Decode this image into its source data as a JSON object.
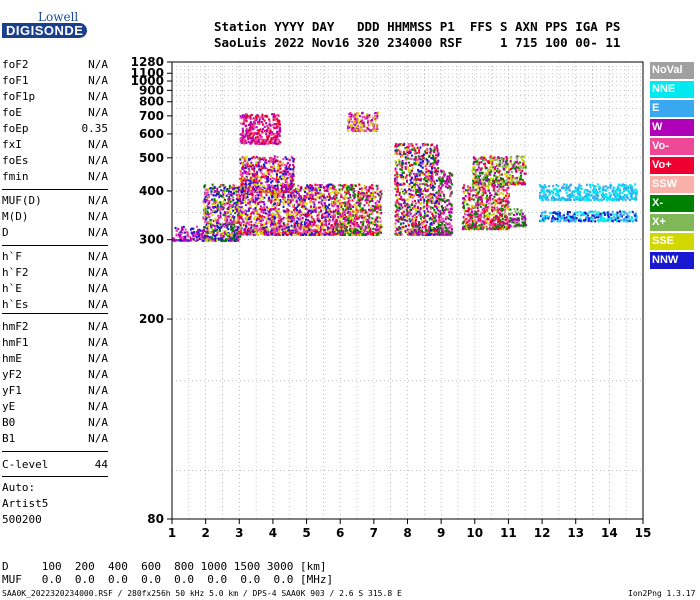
{
  "logo": {
    "line1": "Lowell",
    "line2": "DIGISONDE"
  },
  "header": {
    "row1": "Station YYYY DAY   DDD HHMMSS P1  FFS S AXN PPS IGA PS",
    "row2": "SaoLuis 2022 Nov16 320 234000 RSF     1 715 100 00- 11"
  },
  "params_group1": [
    {
      "name": "foF2",
      "value": "N/A"
    },
    {
      "name": "foF1",
      "value": "N/A"
    },
    {
      "name": "foF1p",
      "value": "N/A"
    },
    {
      "name": "foE",
      "value": "N/A"
    },
    {
      "name": "foEp",
      "value": "0.35"
    },
    {
      "name": "fxI",
      "value": "N/A"
    },
    {
      "name": "foEs",
      "value": "N/A"
    },
    {
      "name": "fmin",
      "value": "N/A"
    }
  ],
  "params_group2": [
    {
      "name": "MUF(D)",
      "value": "N/A"
    },
    {
      "name": "M(D)",
      "value": "N/A"
    },
    {
      "name": "D",
      "value": "N/A"
    }
  ],
  "params_group3": [
    {
      "name": "h`F",
      "value": "N/A"
    },
    {
      "name": "h`F2",
      "value": "N/A"
    },
    {
      "name": "h`E",
      "value": "N/A"
    },
    {
      "name": "h`Es",
      "value": "N/A"
    }
  ],
  "params_group4": [
    {
      "name": "hmF2",
      "value": "N/A"
    },
    {
      "name": "hmF1",
      "value": "N/A"
    },
    {
      "name": "hmE",
      "value": "N/A"
    },
    {
      "name": "yF2",
      "value": "N/A"
    },
    {
      "name": "yF1",
      "value": "N/A"
    },
    {
      "name": "yE",
      "value": "N/A"
    },
    {
      "name": "B0",
      "value": "N/A"
    },
    {
      "name": "B1",
      "value": "N/A"
    }
  ],
  "c_level": {
    "name": "C-level",
    "value": "44"
  },
  "auto": [
    "Auto:",
    "Artist5",
    "500200"
  ],
  "muf_table": {
    "d_row": "D     100  200  400  600  800 1000 1500 3000 [km]",
    "muf_row": "MUF   0.0  0.0  0.0  0.0  0.0  0.0  0.0  0.0 [MHz]"
  },
  "footer": {
    "left": "SAA0K_2022320234000.RSF / 280fx256h 50 kHz 5.0 km / DPS-4 SAA0K 903 / 2.6 S 315.8 E",
    "right": "Ion2Png 1.3.17"
  },
  "chart_data": {
    "type": "scatter",
    "title": "",
    "xlabel": "",
    "ylabel": "",
    "xlim": [
      1,
      15
    ],
    "ylim": [
      80,
      1280
    ],
    "x_ticks": [
      1,
      2,
      3,
      4,
      5,
      6,
      7,
      8,
      9,
      10,
      11,
      12,
      13,
      14,
      15
    ],
    "y_ticks": [
      80,
      200,
      300,
      400,
      500,
      600,
      700,
      800,
      900,
      1000,
      1100,
      1280
    ],
    "y_scale": "reciprocal",
    "grid": true,
    "legend_placement": "right",
    "series": [
      {
        "name": "NoVal",
        "color": "#a0a0a0"
      },
      {
        "name": "NNE",
        "color": "#00e8f0"
      },
      {
        "name": "E",
        "color": "#3aa8f0"
      },
      {
        "name": "W",
        "color": "#b000b8"
      },
      {
        "name": "Vo-",
        "color": "#f04898"
      },
      {
        "name": "Vo+",
        "color": "#f00030"
      },
      {
        "name": "SSW",
        "color": "#f8b0a8"
      },
      {
        "name": "X-",
        "color": "#008000"
      },
      {
        "name": "X+",
        "color": "#80b858"
      },
      {
        "name": "SSE",
        "color": "#d0d800"
      },
      {
        "name": "NNW",
        "color": "#1818d0"
      }
    ],
    "echo_clusters": [
      {
        "x": [
          1.0,
          1.9
        ],
        "y": [
          300,
          325
        ],
        "colors": [
          10,
          4,
          3
        ]
      },
      {
        "x": [
          1.9,
          3.0
        ],
        "y": [
          300,
          420
        ],
        "colors": [
          10,
          4,
          3,
          7,
          9
        ]
      },
      {
        "x": [
          2.9,
          4.5
        ],
        "y": [
          310,
          400
        ],
        "colors": [
          4,
          3,
          5,
          10,
          9
        ]
      },
      {
        "x": [
          3.0,
          4.6
        ],
        "y": [
          400,
          510
        ],
        "colors": [
          3,
          4,
          9,
          10,
          5
        ]
      },
      {
        "x": [
          3.0,
          4.2
        ],
        "y": [
          560,
          720
        ],
        "colors": [
          3,
          4,
          5
        ]
      },
      {
        "x": [
          4.5,
          5.8
        ],
        "y": [
          310,
          420
        ],
        "colors": [
          4,
          3,
          5,
          10,
          9
        ]
      },
      {
        "x": [
          5.8,
          7.2
        ],
        "y": [
          310,
          420
        ],
        "colors": [
          4,
          3,
          5,
          9,
          7
        ]
      },
      {
        "x": [
          6.2,
          7.1
        ],
        "y": [
          620,
          730
        ],
        "colors": [
          3,
          4,
          9
        ]
      },
      {
        "x": [
          7.6,
          8.9
        ],
        "y": [
          310,
          560
        ],
        "colors": [
          4,
          5,
          3,
          9,
          7,
          10
        ]
      },
      {
        "x": [
          8.9,
          9.3
        ],
        "y": [
          310,
          460
        ],
        "colors": [
          4,
          3,
          7
        ]
      },
      {
        "x": [
          9.6,
          11.0
        ],
        "y": [
          320,
          420
        ],
        "colors": [
          4,
          3,
          5,
          9,
          7
        ]
      },
      {
        "x": [
          9.9,
          11.5
        ],
        "y": [
          420,
          510
        ],
        "colors": [
          9,
          8,
          7,
          3,
          5
        ]
      },
      {
        "x": [
          11.0,
          11.5
        ],
        "y": [
          325,
          360
        ],
        "colors": [
          3,
          7,
          8
        ]
      },
      {
        "x": [
          11.9,
          14.8
        ],
        "y": [
          380,
          420
        ],
        "colors": [
          1,
          2
        ]
      },
      {
        "x": [
          11.9,
          14.8
        ],
        "y": [
          335,
          355
        ],
        "colors": [
          1,
          2,
          10
        ]
      }
    ]
  }
}
